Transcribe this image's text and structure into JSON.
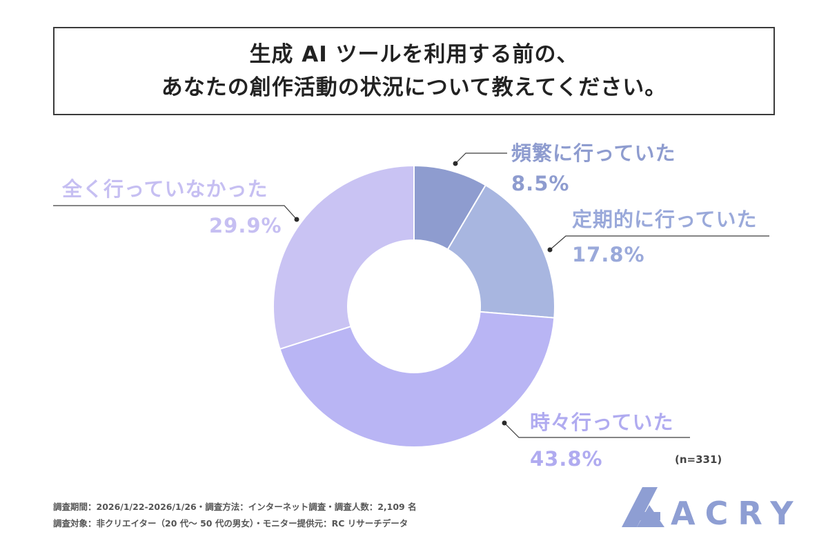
{
  "title": {
    "line1": "生成 AI ツールを利用する前の、",
    "line2": "あなたの創作活動の状況について教えてください。"
  },
  "sample_size": "(n=331)",
  "footnotes": {
    "line1": "調査期間：2026/1/22-2026/1/26・調査方法：インターネット調査・調査人数：2,109 名",
    "line2": "調査対象：非クリエイター（20 代〜 50 代の男女）・モニター提供元：RC リサーチデータ"
  },
  "logo": {
    "text": "ACRY",
    "color": "#8e9ed3"
  },
  "chart_data": {
    "type": "pie",
    "style": "donut",
    "start": "12 o'clock, clockwise",
    "slices": [
      {
        "label": "頻繁に行っていた",
        "value": 8.5,
        "display": "8.5%",
        "color": "#8e9ccf",
        "label_color": "#8e9ccf"
      },
      {
        "label": "定期的に行っていた",
        "value": 17.8,
        "display": "17.8%",
        "color": "#a8b6e0",
        "label_color": "#9aa9da"
      },
      {
        "label": "時々行っていた",
        "value": 43.8,
        "display": "43.8%",
        "color": "#b9b5f4",
        "label_color": "#b0abf0"
      },
      {
        "label": "全く行っていなかった",
        "value": 29.9,
        "display": "29.9%",
        "color": "#c9c3f3",
        "label_color": "#c6bff2"
      }
    ]
  }
}
